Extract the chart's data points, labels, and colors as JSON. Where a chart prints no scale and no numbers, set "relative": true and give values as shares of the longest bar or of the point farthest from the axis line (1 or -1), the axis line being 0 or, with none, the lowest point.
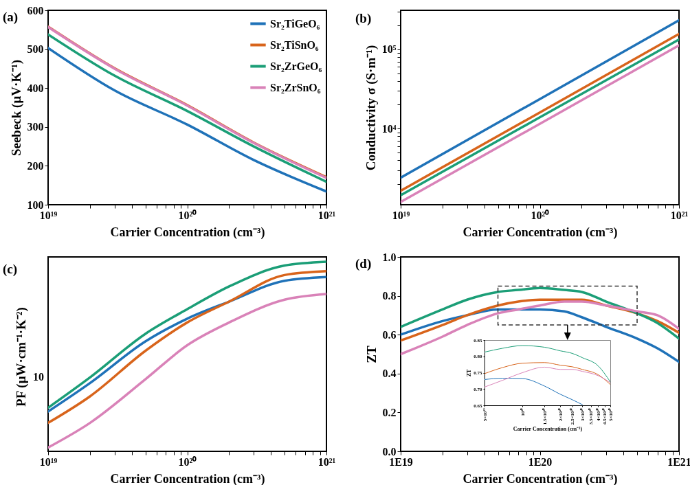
{
  "chart_data": [
    {
      "type": "line",
      "title": "(a)",
      "xlabel": "Carrier Concentration (cm⁻³)",
      "ylabel": "Seebeck (μV·K⁻¹)",
      "log": "x",
      "legend": "top right",
      "x": [
        1e+19,
        3e+19,
        1e+20,
        3e+20,
        1e+21
      ],
      "series": [
        {
          "name": "Sr₂TiGeO₆",
          "color": "#1f72b8",
          "values": [
            503,
            394,
            306,
            215,
            134
          ]
        },
        {
          "name": "Sr₂TiSnO₆",
          "color": "#d8641b",
          "values": [
            558,
            451,
            356,
            260,
            171
          ]
        },
        {
          "name": "Sr₂ZrGeO₆",
          "color": "#1b9e77",
          "values": [
            538,
            432,
            341,
            250,
            159
          ]
        },
        {
          "name": "Sr₂ZrSnO₆",
          "color": "#d982b8",
          "values": [
            557,
            450,
            355,
            259,
            169
          ]
        }
      ],
      "xlim": [
        1e+19,
        1e+21
      ],
      "xticks": [
        {
          "value": 1e+19,
          "label": "10¹⁹"
        },
        {
          "value": 2e+19,
          "label": null
        },
        {
          "value": 3e+19,
          "label": null
        },
        {
          "value": 4e+19,
          "label": null
        },
        {
          "value": 5e+19,
          "label": null
        },
        {
          "value": 6e+19,
          "label": null
        },
        {
          "value": 7e+19,
          "label": null
        },
        {
          "value": 8e+19,
          "label": null
        },
        {
          "value": 9e+19,
          "label": null
        },
        {
          "value": 1e+20,
          "label": "10²⁰"
        },
        {
          "value": 2e+20,
          "label": null
        },
        {
          "value": 3e+20,
          "label": null
        },
        {
          "value": 4e+20,
          "label": null
        },
        {
          "value": 5e+20,
          "label": null
        },
        {
          "value": 6e+20,
          "label": null
        },
        {
          "value": 7e+20,
          "label": null
        },
        {
          "value": 8e+20,
          "label": null
        },
        {
          "value": 9e+20,
          "label": null
        },
        {
          "value": 1e+21,
          "label": "10²¹"
        }
      ],
      "ylim": [
        100,
        600
      ],
      "yticks": [
        100,
        200,
        300,
        400,
        500,
        600
      ]
    },
    {
      "type": "line",
      "title": "(b)",
      "xlabel": "Carrier Concentration (cm⁻³)",
      "ylabel": "Conductivity σ (S·m⁻¹)",
      "log": "xy",
      "x": [
        1e+19,
        1e+20,
        1e+21
      ],
      "series": [
        {
          "color": "#1f72b8",
          "values": [
            2410,
            23600,
            232000
          ]
        },
        {
          "color": "#d8641b",
          "values": [
            1650,
            16000,
            156000
          ]
        },
        {
          "color": "#1b9e77",
          "values": [
            1450,
            13900,
            133000
          ]
        },
        {
          "color": "#d982b8",
          "values": [
            1190,
            11500,
            112000
          ]
        }
      ],
      "xlim": [
        1e+19,
        1e+21
      ],
      "xticks": [
        {
          "value": 1e+19,
          "label": "10¹⁹"
        },
        {
          "value": 2e+19,
          "label": null
        },
        {
          "value": 3e+19,
          "label": null
        },
        {
          "value": 4e+19,
          "label": null
        },
        {
          "value": 5e+19,
          "label": null
        },
        {
          "value": 6e+19,
          "label": null
        },
        {
          "value": 7e+19,
          "label": null
        },
        {
          "value": 8e+19,
          "label": null
        },
        {
          "value": 9e+19,
          "label": null
        },
        {
          "value": 1e+20,
          "label": "10²⁰"
        },
        {
          "value": 2e+20,
          "label": null
        },
        {
          "value": 3e+20,
          "label": null
        },
        {
          "value": 4e+20,
          "label": null
        },
        {
          "value": 5e+20,
          "label": null
        },
        {
          "value": 6e+20,
          "label": null
        },
        {
          "value": 7e+20,
          "label": null
        },
        {
          "value": 8e+20,
          "label": null
        },
        {
          "value": 9e+20,
          "label": null
        },
        {
          "value": 1e+21,
          "label": "10²¹"
        }
      ],
      "ylim": [
        1100,
        310000
      ],
      "yticks": [
        {
          "value": 2000,
          "label": null
        },
        {
          "value": 3000,
          "label": null
        },
        {
          "value": 4000,
          "label": null
        },
        {
          "value": 5000,
          "label": null
        },
        {
          "value": 6000,
          "label": null
        },
        {
          "value": 7000,
          "label": null
        },
        {
          "value": 8000,
          "label": null
        },
        {
          "value": 9000,
          "label": null
        },
        {
          "value": 10000,
          "label": "10⁴"
        },
        {
          "value": 20000,
          "label": null
        },
        {
          "value": 30000,
          "label": null
        },
        {
          "value": 40000,
          "label": null
        },
        {
          "value": 50000,
          "label": null
        },
        {
          "value": 60000,
          "label": null
        },
        {
          "value": 70000,
          "label": null
        },
        {
          "value": 80000,
          "label": null
        },
        {
          "value": 90000,
          "label": null
        },
        {
          "value": 100000,
          "label": "10⁵"
        },
        {
          "value": 200000,
          "label": null
        },
        {
          "value": 300000,
          "label": null
        }
      ]
    },
    {
      "type": "line",
      "title": "(c)",
      "xlabel": "Carrier Concentration (cm⁻³)",
      "ylabel": "PF (μW·cm⁻¹·K⁻²)",
      "log": "x",
      "relative": true,
      "annotations": [
        "10"
      ],
      "x": [
        1e+19,
        2e+19,
        5e+19,
        1e+20,
        2e+20,
        5e+20,
        1e+21
      ],
      "series": [
        {
          "color": "#1f72b8",
          "values": [
            0.21,
            0.36,
            0.58,
            0.7,
            0.79,
            0.9,
            0.92
          ]
        },
        {
          "color": "#d8641b",
          "values": [
            0.15,
            0.29,
            0.53,
            0.68,
            0.79,
            0.93,
            0.95
          ]
        },
        {
          "color": "#1b9e77",
          "values": [
            0.23,
            0.39,
            0.62,
            0.75,
            0.87,
            0.98,
            1
          ]
        },
        {
          "color": "#d982b8",
          "values": [
            0.02,
            0.15,
            0.38,
            0.56,
            0.68,
            0.8,
            0.83
          ]
        }
      ],
      "xlim": [
        1e+19,
        1e+21
      ],
      "xticks": [
        {
          "value": 1e+19,
          "label": "10¹⁹"
        },
        {
          "value": 2e+19,
          "label": null
        },
        {
          "value": 3e+19,
          "label": null
        },
        {
          "value": 4e+19,
          "label": null
        },
        {
          "value": 5e+19,
          "label": null
        },
        {
          "value": 6e+19,
          "label": null
        },
        {
          "value": 7e+19,
          "label": null
        },
        {
          "value": 8e+19,
          "label": null
        },
        {
          "value": 9e+19,
          "label": null
        },
        {
          "value": 1e+20,
          "label": "10²⁰"
        },
        {
          "value": 2e+20,
          "label": null
        },
        {
          "value": 3e+20,
          "label": null
        },
        {
          "value": 4e+20,
          "label": null
        },
        {
          "value": 5e+20,
          "label": null
        },
        {
          "value": 6e+20,
          "label": null
        },
        {
          "value": 7e+20,
          "label": null
        },
        {
          "value": 8e+20,
          "label": null
        },
        {
          "value": 9e+20,
          "label": null
        },
        {
          "value": 1e+21,
          "label": "10²¹"
        }
      ],
      "tick_labels": "x"
    },
    {
      "type": "line",
      "title": "(d)",
      "xlabel": "Carrier Concentration (cm⁻³)",
      "ylabel": "ZT",
      "log": "x",
      "x": [
        1e+19,
        2e+19,
        3e+19,
        5e+19,
        7e+19,
        1e+20,
        1.5e+20,
        2e+20,
        3e+20,
        5e+20,
        7e+20,
        1e+21
      ],
      "series": [
        {
          "color": "#1f72b8",
          "values": [
            0.6,
            0.67,
            0.7,
            0.73,
            0.73,
            0.73,
            0.72,
            0.69,
            0.64,
            0.58,
            0.53,
            0.46
          ]
        },
        {
          "color": "#d8641b",
          "values": [
            0.57,
            0.65,
            0.7,
            0.75,
            0.77,
            0.78,
            0.78,
            0.78,
            0.75,
            0.71,
            0.67,
            0.61
          ]
        },
        {
          "color": "#1b9e77",
          "values": [
            0.64,
            0.73,
            0.78,
            0.82,
            0.83,
            0.84,
            0.83,
            0.82,
            0.77,
            0.71,
            0.66,
            0.58
          ]
        },
        {
          "color": "#d982b8",
          "values": [
            0.5,
            0.59,
            0.65,
            0.71,
            0.73,
            0.75,
            0.77,
            0.77,
            0.75,
            0.72,
            0.7,
            0.63
          ]
        }
      ],
      "xlim": [
        1e+19,
        1e+21
      ],
      "xticks": [
        {
          "value": 1e+19,
          "label": "1E19"
        },
        {
          "value": 2e+19,
          "label": null
        },
        {
          "value": 3e+19,
          "label": null
        },
        {
          "value": 4e+19,
          "label": null
        },
        {
          "value": 5e+19,
          "label": null
        },
        {
          "value": 6e+19,
          "label": null
        },
        {
          "value": 7e+19,
          "label": null
        },
        {
          "value": 8e+19,
          "label": null
        },
        {
          "value": 9e+19,
          "label": null
        },
        {
          "value": 1e+20,
          "label": "1E20"
        },
        {
          "value": 2e+20,
          "label": null
        },
        {
          "value": 3e+20,
          "label": null
        },
        {
          "value": 4e+20,
          "label": null
        },
        {
          "value": 5e+20,
          "label": null
        },
        {
          "value": 6e+20,
          "label": null
        },
        {
          "value": 7e+20,
          "label": null
        },
        {
          "value": 8e+20,
          "label": null
        },
        {
          "value": 9e+20,
          "label": null
        },
        {
          "value": 1e+21,
          "label": "1E21"
        }
      ],
      "ylim": [
        0,
        1
      ],
      "yticks": [
        {
          "value": 0,
          "label": "0.0"
        },
        0.2,
        0.4,
        0.6,
        0.8,
        {
          "value": 1,
          "label": "1.0"
        }
      ]
    },
    {
      "type": "line",
      "xlabel": "Carrier Concentration (cm⁻³)",
      "ylabel": "ZT",
      "log": "x",
      "x": [
        5e+19,
        7e+19,
        1e+20,
        1.5e+20,
        2e+20,
        2.5e+20,
        3e+20,
        4e+20,
        5e+20
      ],
      "series": [
        {
          "color": "#1f72b8",
          "values": [
            0.729,
            0.733,
            0.732,
            0.709,
            0.684,
            0.667,
            0.652,
            null,
            null
          ]
        },
        {
          "color": "#d8641b",
          "values": [
            0.747,
            0.766,
            0.779,
            0.781,
            0.773,
            0.768,
            0.76,
            0.744,
            0.714
          ]
        },
        {
          "color": "#1b9e77",
          "values": [
            0.813,
            0.825,
            0.833,
            0.828,
            0.817,
            0.809,
            0.796,
            0.771,
            0.722
          ]
        },
        {
          "color": "#d982b8",
          "values": [
            0.706,
            0.727,
            0.75,
            0.767,
            0.76,
            0.76,
            0.754,
            0.741,
            0.72
          ]
        }
      ],
      "xlim": [
        5e+19,
        5e+20
      ],
      "xticks": [
        {
          "value": 5e+19,
          "label": "5×10¹⁹"
        },
        {
          "value": 1e+20,
          "label": "10²⁰"
        },
        {
          "value": 1.5e+20,
          "label": "1.5×10²⁰"
        },
        {
          "value": 2e+20,
          "label": "2×10²⁰"
        },
        {
          "value": 2.5e+20,
          "label": "2.5×10²⁰"
        },
        {
          "value": 3e+20,
          "label": "3×10²⁰"
        },
        {
          "value": 3.5e+20,
          "label": "3.5×10²⁰"
        },
        {
          "value": 4e+20,
          "label": "4×10²⁰"
        },
        {
          "value": 4.5e+20,
          "label": "4.5×10²⁰"
        },
        {
          "value": 5e+20,
          "label": "5×10²⁰"
        }
      ],
      "ylim": [
        0.65,
        0.85
      ],
      "yticks": [
        {
          "value": 0.65,
          "label": "0.65"
        },
        {
          "value": 0.7,
          "label": "0.70"
        },
        {
          "value": 0.75,
          "label": "0.75"
        },
        {
          "value": 0.8,
          "label": "0.80"
        },
        {
          "value": 0.85,
          "label": "0.85"
        }
      ]
    }
  ]
}
